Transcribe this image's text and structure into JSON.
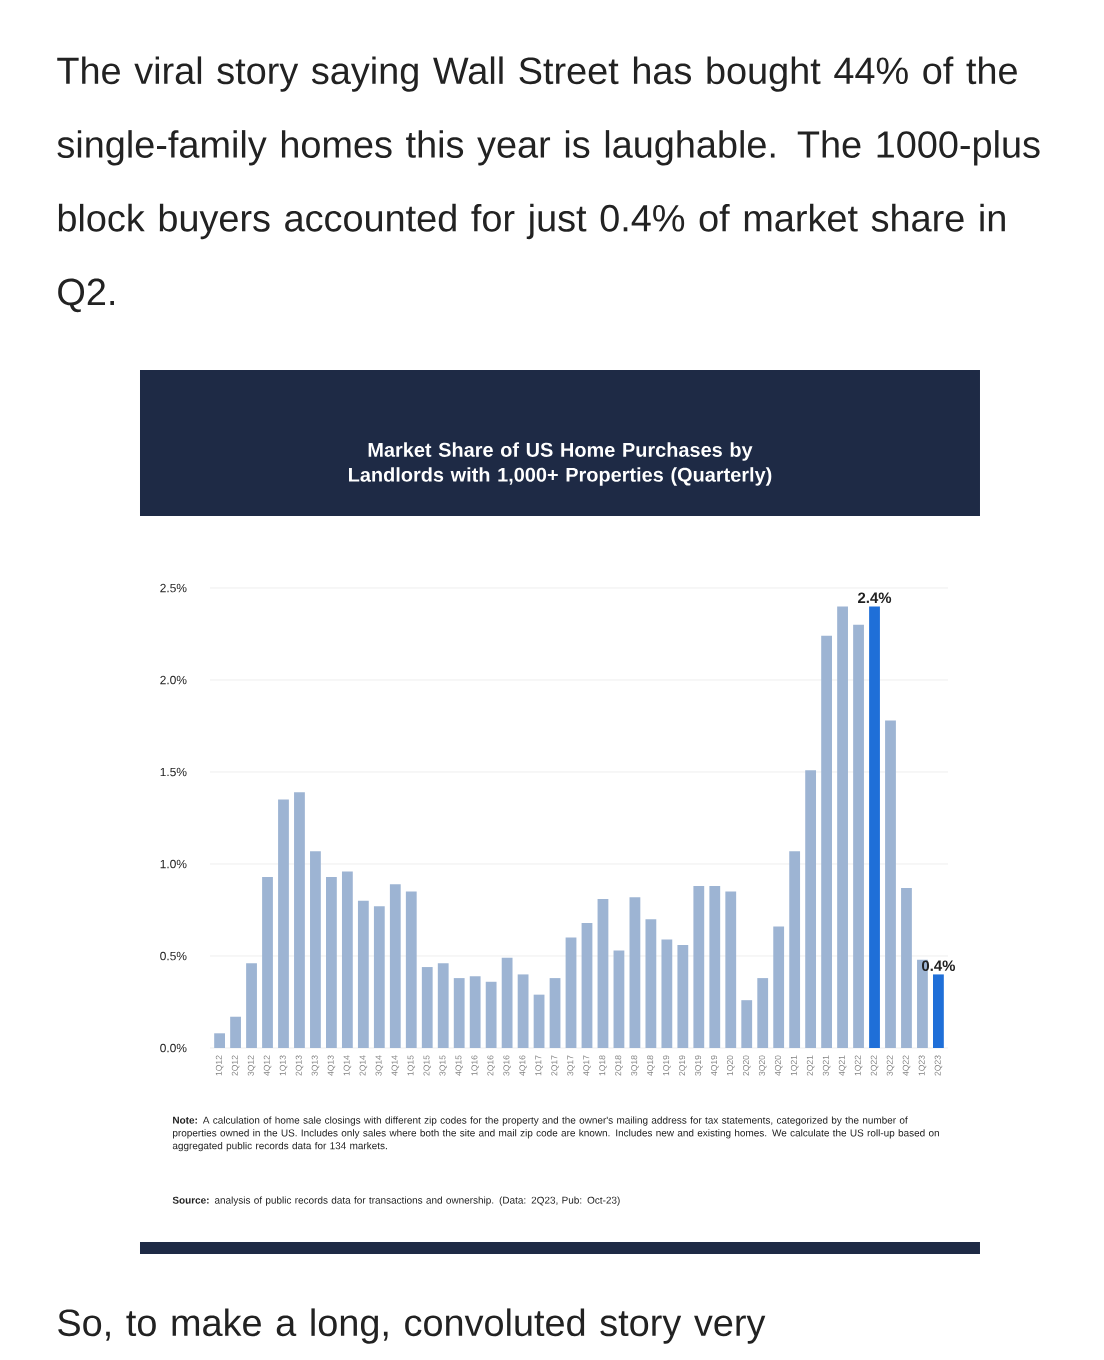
{
  "chart_data": {
    "type": "bar",
    "title": "Market Share of US Home Purchases by Landlords with 1,000+ Properties (Quarterly)",
    "categories": [
      "1Q12",
      "2Q12",
      "3Q12",
      "4Q12",
      "1Q13",
      "2Q13",
      "3Q13",
      "4Q13",
      "1Q14",
      "2Q14",
      "3Q14",
      "4Q14",
      "1Q15",
      "2Q15",
      "3Q15",
      "4Q15",
      "1Q16",
      "2Q16",
      "3Q16",
      "4Q16",
      "1Q17",
      "2Q17",
      "3Q17",
      "4Q17",
      "1Q18",
      "2Q18",
      "3Q18",
      "4Q18",
      "1Q19",
      "2Q19",
      "3Q19",
      "4Q19",
      "1Q20",
      "2Q20",
      "3Q20",
      "4Q20",
      "1Q21",
      "2Q21",
      "3Q21",
      "4Q21",
      "1Q22",
      "2Q22",
      "3Q22",
      "4Q22",
      "1Q23",
      "2Q23"
    ],
    "values": [
      0.08,
      0.17,
      0.46,
      0.93,
      1.35,
      1.39,
      1.07,
      0.93,
      0.96,
      0.8,
      0.77,
      0.89,
      0.85,
      0.44,
      0.46,
      0.38,
      0.39,
      0.36,
      0.49,
      0.4,
      0.29,
      0.38,
      0.6,
      0.68,
      0.81,
      0.53,
      0.82,
      0.7,
      0.59,
      0.56,
      0.88,
      0.88,
      0.85,
      0.26,
      0.38,
      0.66,
      1.07,
      1.51,
      2.24,
      2.4,
      2.3,
      2.4,
      1.78,
      0.87,
      0.48,
      0.4
    ],
    "colors": [
      "#9db4d3",
      "#9db4d3",
      "#9db4d3",
      "#9db4d3",
      "#9db4d3",
      "#9db4d3",
      "#9db4d3",
      "#9db4d3",
      "#9db4d3",
      "#9db4d3",
      "#9db4d3",
      "#9db4d3",
      "#9db4d3",
      "#9db4d3",
      "#9db4d3",
      "#9db4d3",
      "#9db4d3",
      "#9db4d3",
      "#9db4d3",
      "#9db4d3",
      "#9db4d3",
      "#9db4d3",
      "#9db4d3",
      "#9db4d3",
      "#9db4d3",
      "#9db4d3",
      "#9db4d3",
      "#9db4d3",
      "#9db4d3",
      "#9db4d3",
      "#9db4d3",
      "#9db4d3",
      "#9db4d3",
      "#9db4d3",
      "#9db4d3",
      "#9db4d3",
      "#9db4d3",
      "#9db4d3",
      "#9db4d3",
      "#9db4d3",
      "#9db4d3",
      "#1f6fd8",
      "#9db4d3",
      "#9db4d3",
      "#9db4d3",
      "#1f6fd8"
    ],
    "value_labels": [
      null,
      null,
      null,
      null,
      null,
      null,
      null,
      null,
      null,
      null,
      null,
      null,
      null,
      null,
      null,
      null,
      null,
      null,
      null,
      null,
      null,
      null,
      null,
      null,
      null,
      null,
      null,
      null,
      null,
      null,
      null,
      null,
      null,
      null,
      null,
      null,
      null,
      null,
      null,
      null,
      null,
      "2.4%",
      null,
      null,
      null,
      "0.4%"
    ],
    "ylim": [
      0,
      2.5
    ],
    "yticks": [
      {
        "value": 0,
        "label": "0.0%"
      },
      {
        "value": 0.5,
        "label": "0.5%"
      },
      {
        "value": 1,
        "label": "1.0%"
      },
      {
        "value": 1.5,
        "label": "1.5%"
      },
      {
        "value": 2,
        "label": "2.0%"
      },
      {
        "value": 2.5,
        "label": "2.5%"
      }
    ],
    "grid": "y",
    "annotations": [
      "The viral story saying Wall Street has bought 44% of the single-family homes this year is laughable. The 1000-plus block buyers accounted for just 0.4% of market share in Q2.",
      "**Note:** A calculation of home sale closings with different zip codes for the property and the owner's mailing address for tax statements, categorized by the number of properties owned in the US. Includes only sales where both the site and mail zip code are known. Includes new and existing homes. We calculate the US roll-up based on aggregated public records data for 134 markets.",
      "**Source:** analysis of public records data for transactions and ownership. (Data: 2Q23, Pub: Oct-23)",
      "So, to make a long, convoluted story very"
    ]
  }
}
